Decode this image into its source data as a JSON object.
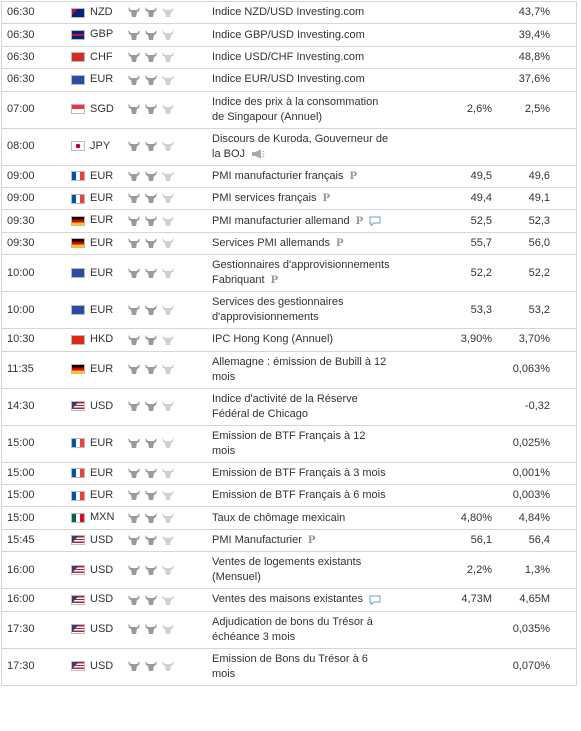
{
  "calendar": {
    "rows": [
      {
        "time": "06:30",
        "currency": "NZD",
        "event": "Indice NZD/USD Investing.com",
        "previous": "43,7%"
      },
      {
        "time": "06:30",
        "currency": "GBP",
        "event": "Indice GBP/USD Investing.com",
        "previous": "39,4%"
      },
      {
        "time": "06:30",
        "currency": "CHF",
        "event": "Indice USD/CHF Investing.com",
        "previous": "48,8%"
      },
      {
        "time": "06:30",
        "currency": "EUR",
        "event": "Indice EUR/USD Investing.com",
        "previous": "37,6%"
      },
      {
        "time": "07:00",
        "currency": "SGD",
        "event": "Indice des prix à la consommation de Singapour (Annuel)",
        "forecast": "2,6%",
        "previous": "2,5%"
      },
      {
        "time": "08:00",
        "currency": "JPY",
        "event": "Discours de Kuroda, Gouverneur de la BOJ"
      },
      {
        "time": "09:00",
        "currency": "EUR",
        "event": "PMI manufacturier français",
        "tag": "P",
        "forecast": "49,5",
        "previous": "49,6"
      },
      {
        "time": "09:00",
        "currency": "EUR",
        "event": "PMI services français",
        "tag": "P",
        "forecast": "49,4",
        "previous": "49,1"
      },
      {
        "time": "09:30",
        "currency": "EUR",
        "event": "PMI manufacturier allemand",
        "tag": "P",
        "forecast": "52,5",
        "previous": "52,3"
      },
      {
        "time": "09:30",
        "currency": "EUR",
        "event": "Services PMI allemands",
        "tag": "P",
        "forecast": "55,7",
        "previous": "56,0"
      },
      {
        "time": "10:00",
        "currency": "EUR",
        "event": "Gestionnaires d'approvisionnements Fabriquant",
        "tag": "P",
        "forecast": "52,2",
        "previous": "52,2"
      },
      {
        "time": "10:00",
        "currency": "EUR",
        "event": "Services des gestionnaires d'approvisionnements",
        "forecast": "53,3",
        "previous": "53,2"
      },
      {
        "time": "10:30",
        "currency": "HKD",
        "event": "IPC Hong Kong (Annuel)",
        "forecast": "3,90%",
        "previous": "3,70%"
      },
      {
        "time": "11:35",
        "currency": "EUR",
        "event": "Allemagne : émission de Bubill à 12 mois",
        "previous": "0,063%"
      },
      {
        "time": "14:30",
        "currency": "USD",
        "event": "Indice d'activité de la Réserve Fédéral de Chicago",
        "previous": "-0,32"
      },
      {
        "time": "15:00",
        "currency": "EUR",
        "event": "Emission de BTF Français à 12 mois",
        "previous": "0,025%"
      },
      {
        "time": "15:00",
        "currency": "EUR",
        "event": "Emission de BTF Français à 3 mois",
        "previous": "0,001%"
      },
      {
        "time": "15:00",
        "currency": "EUR",
        "event": "Emission de BTF Français à 6 mois",
        "previous": "0,003%"
      },
      {
        "time": "15:00",
        "currency": "MXN",
        "event": "Taux de chômage mexicain",
        "forecast": "4,80%",
        "previous": "4,84%"
      },
      {
        "time": "15:45",
        "currency": "USD",
        "event": "PMI Manufacturier",
        "tag": "P",
        "forecast": "56,1",
        "previous": "56,4"
      },
      {
        "time": "16:00",
        "currency": "USD",
        "event": "Ventes de logements existants (Mensuel)",
        "forecast": "2,2%",
        "previous": "1,3%"
      },
      {
        "time": "16:00",
        "currency": "USD",
        "event": "Ventes des maisons existantes",
        "forecast": "4,73M",
        "previous": "4,65M"
      },
      {
        "time": "17:30",
        "currency": "USD",
        "event": "Adjudication de bons du Trésor à échéance 3 mois",
        "previous": "0,035%"
      },
      {
        "time": "17:30",
        "currency": "USD",
        "event": "Emission de Bons du Trésor à 6 mois",
        "previous": "0,070%"
      }
    ]
  }
}
